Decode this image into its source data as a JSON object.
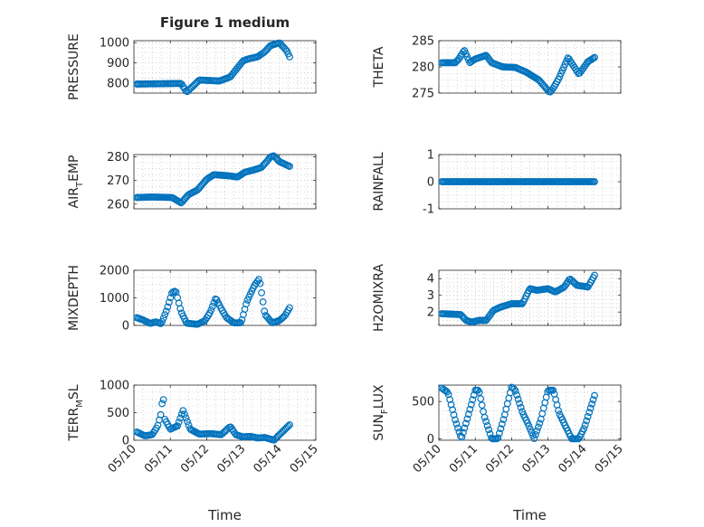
{
  "window": {
    "title": "Figure 1 medium"
  },
  "chart_data": [
    {
      "type": "scatter",
      "panel": 1,
      "title": "Figure 1 medium",
      "ylabel": "PRESSURE",
      "ylabel_sub": "",
      "ylabel_post": "",
      "ylabel_sup": "",
      "xlabel": "",
      "ylim": [
        750,
        1010
      ],
      "yticks": [
        800,
        900,
        1000
      ],
      "show_xticklabels": false,
      "x_start": "05/10",
      "xlim_days": [
        0,
        5
      ],
      "xticks": [
        {
          "day": 0,
          "label": "05/10"
        },
        {
          "day": 1,
          "label": "05/11"
        },
        {
          "day": 2,
          "label": "05/12"
        },
        {
          "day": 3,
          "label": "05/13"
        },
        {
          "day": 4,
          "label": "05/14"
        },
        {
          "day": 5,
          "label": "05/15"
        }
      ],
      "series": [
        {
          "color": "#0072bd",
          "t": [
            0.08,
            1.3,
            1.45,
            1.8,
            2.35,
            2.65,
            3.0,
            3.15,
            3.4,
            3.6,
            3.75,
            4.0,
            4.2,
            4.28
          ],
          "y": [
            795,
            798,
            755,
            815,
            810,
            830,
            910,
            920,
            930,
            955,
            985,
            1000,
            960,
            930
          ],
          "n": 110
        }
      ],
      "grid": true,
      "marker": "circle"
    },
    {
      "type": "scatter",
      "panel": 2,
      "title": "",
      "ylabel": "THETA",
      "ylabel_sub": "",
      "ylabel_post": "",
      "ylabel_sup": "",
      "xlabel": "",
      "ylim": [
        275,
        285
      ],
      "yticks": [
        275,
        280,
        285
      ],
      "show_xticklabels": false,
      "x_start": "05/10",
      "xlim_days": [
        0,
        5
      ],
      "xticks": [
        {
          "day": 0,
          "label": "05/10"
        },
        {
          "day": 1,
          "label": "05/11"
        },
        {
          "day": 2,
          "label": "05/12"
        },
        {
          "day": 3,
          "label": "05/13"
        },
        {
          "day": 4,
          "label": "05/14"
        },
        {
          "day": 5,
          "label": "05/15"
        }
      ],
      "series": [
        {
          "color": "#0072bd",
          "t": [
            0.08,
            0.45,
            0.55,
            0.7,
            0.85,
            1.0,
            1.3,
            1.45,
            1.75,
            2.1,
            2.4,
            2.75,
            3.05,
            3.15,
            3.3,
            3.55,
            3.85,
            4.1,
            4.28
          ],
          "y": [
            280.8,
            280.8,
            281.5,
            283.2,
            280.8,
            281.5,
            282.2,
            280.8,
            280.0,
            279.9,
            279.0,
            277.5,
            275.1,
            276.0,
            277.8,
            281.8,
            278.6,
            281.0,
            281.8
          ],
          "n": 115
        }
      ],
      "grid": true,
      "marker": "circle"
    },
    {
      "type": "scatter",
      "panel": 3,
      "title": "",
      "ylabel": "AIR",
      "ylabel_sub": "T",
      "ylabel_post": "EMP",
      "ylabel_sup": "",
      "xlabel": "",
      "ylim": [
        258,
        281
      ],
      "yticks": [
        260,
        270,
        280
      ],
      "show_xticklabels": false,
      "x_start": "05/10",
      "xlim_days": [
        0,
        5
      ],
      "xticks": [
        {
          "day": 0,
          "label": "05/10"
        },
        {
          "day": 1,
          "label": "05/11"
        },
        {
          "day": 2,
          "label": "05/12"
        },
        {
          "day": 3,
          "label": "05/13"
        },
        {
          "day": 4,
          "label": "05/14"
        },
        {
          "day": 5,
          "label": "05/15"
        }
      ],
      "series": [
        {
          "color": "#0072bd",
          "t": [
            0.08,
            0.5,
            1.05,
            1.3,
            1.5,
            1.75,
            2.0,
            2.2,
            2.6,
            2.85,
            3.05,
            3.3,
            3.5,
            3.65,
            3.75,
            3.85,
            4.0,
            4.28
          ],
          "y": [
            262.8,
            263.0,
            262.8,
            260.5,
            264.0,
            266.0,
            270.5,
            272.5,
            272.0,
            271.5,
            273.5,
            274.5,
            275.5,
            278.0,
            280.0,
            280.5,
            278.0,
            276.0
          ],
          "n": 115
        }
      ],
      "grid": true,
      "marker": "circle"
    },
    {
      "type": "scatter",
      "panel": 4,
      "title": "",
      "ylabel": "RAINFALL",
      "ylabel_sub": "",
      "ylabel_post": "",
      "ylabel_sup": "",
      "xlabel": "",
      "ylim": [
        -1,
        1
      ],
      "yticks": [
        -1,
        0,
        1
      ],
      "show_xticklabels": false,
      "x_start": "05/10",
      "xlim_days": [
        0,
        5
      ],
      "xticks": [
        {
          "day": 0,
          "label": "05/10"
        },
        {
          "day": 1,
          "label": "05/11"
        },
        {
          "day": 2,
          "label": "05/12"
        },
        {
          "day": 3,
          "label": "05/13"
        },
        {
          "day": 4,
          "label": "05/14"
        },
        {
          "day": 5,
          "label": "05/15"
        }
      ],
      "series": [
        {
          "color": "#0072bd",
          "t": [
            0.08,
            4.28
          ],
          "y": [
            0,
            0
          ],
          "n": 115
        }
      ],
      "grid": true,
      "marker": "circle"
    },
    {
      "type": "scatter",
      "panel": 5,
      "title": "",
      "ylabel": "MIXDEPTH",
      "ylabel_sub": "",
      "ylabel_post": "",
      "ylabel_sup": "",
      "xlabel": "",
      "ylim": [
        0,
        2000
      ],
      "yticks": [
        0,
        1000,
        2000
      ],
      "show_xticklabels": false,
      "x_start": "05/10",
      "xlim_days": [
        0,
        5
      ],
      "xticks": [
        {
          "day": 0,
          "label": "05/10"
        },
        {
          "day": 1,
          "label": "05/11"
        },
        {
          "day": 2,
          "label": "05/12"
        },
        {
          "day": 3,
          "label": "05/13"
        },
        {
          "day": 4,
          "label": "05/14"
        },
        {
          "day": 5,
          "label": "05/15"
        }
      ],
      "series": [
        {
          "color": "#0072bd",
          "t": [
            0.08,
            0.25,
            0.45,
            0.6,
            0.75,
            0.9,
            1.05,
            1.15,
            1.3,
            1.45,
            1.75,
            1.95,
            2.1,
            2.25,
            2.4,
            2.55,
            2.75,
            2.95,
            3.1,
            3.3,
            3.45,
            3.6,
            3.8,
            4.0,
            4.15,
            4.28
          ],
          "y": [
            280,
            200,
            70,
            130,
            60,
            550,
            1200,
            1250,
            480,
            80,
            40,
            170,
            480,
            1000,
            600,
            280,
            90,
            100,
            850,
            1420,
            1700,
            400,
            90,
            180,
            350,
            640
          ],
          "n": 110
        }
      ],
      "grid": true,
      "marker": "circle"
    },
    {
      "type": "scatter",
      "panel": 6,
      "title": "",
      "ylabel": "H2OMIXRA",
      "ylabel_sub": "",
      "ylabel_post": "",
      "ylabel_sup": "",
      "xlabel": "",
      "ylim": [
        1.2,
        4.5
      ],
      "yticks": [
        2,
        3,
        4
      ],
      "show_xticklabels": false,
      "x_start": "05/10",
      "xlim_days": [
        0,
        5
      ],
      "xticks": [
        {
          "day": 0,
          "label": "05/10"
        },
        {
          "day": 1,
          "label": "05/11"
        },
        {
          "day": 2,
          "label": "05/12"
        },
        {
          "day": 3,
          "label": "05/13"
        },
        {
          "day": 4,
          "label": "05/14"
        },
        {
          "day": 5,
          "label": "05/15"
        }
      ],
      "series": [
        {
          "color": "#0072bd",
          "t": [
            0.08,
            0.6,
            0.75,
            0.9,
            1.1,
            1.3,
            1.5,
            1.7,
            2.0,
            2.3,
            2.5,
            2.7,
            3.0,
            3.2,
            3.45,
            3.6,
            3.8,
            4.1,
            4.28
          ],
          "y": [
            1.9,
            1.85,
            1.5,
            1.4,
            1.5,
            1.5,
            2.1,
            2.3,
            2.5,
            2.5,
            3.4,
            3.3,
            3.4,
            3.2,
            3.5,
            4.0,
            3.6,
            3.5,
            4.2
          ],
          "n": 115
        }
      ],
      "grid": true,
      "marker": "circle"
    },
    {
      "type": "scatter",
      "panel": 7,
      "title": "",
      "ylabel": "TERR",
      "ylabel_sub": "M",
      "ylabel_post": "SL",
      "ylabel_sup": "",
      "xlabel": "Time",
      "ylim": [
        0,
        1000
      ],
      "yticks": [
        0,
        500,
        1000
      ],
      "show_xticklabels": true,
      "x_start": "05/10",
      "xlim_days": [
        0,
        5
      ],
      "xticks": [
        {
          "day": 0,
          "label": "05/10"
        },
        {
          "day": 1,
          "label": "05/11"
        },
        {
          "day": 2,
          "label": "05/12"
        },
        {
          "day": 3,
          "label": "05/13"
        },
        {
          "day": 4,
          "label": "05/14"
        },
        {
          "day": 5,
          "label": "05/15"
        }
      ],
      "series": [
        {
          "color": "#0072bd",
          "t": [
            0.08,
            0.3,
            0.5,
            0.65,
            0.75,
            0.8,
            0.85,
            1.0,
            1.2,
            1.35,
            1.55,
            1.8,
            2.1,
            2.4,
            2.65,
            2.8,
            3.0,
            3.2,
            3.4,
            3.6,
            3.85,
            4.0,
            4.28
          ],
          "y": [
            150,
            80,
            100,
            250,
            500,
            850,
            380,
            200,
            260,
            540,
            200,
            110,
            120,
            100,
            250,
            100,
            60,
            70,
            40,
            50,
            0,
            100,
            280
          ],
          "n": 110
        }
      ],
      "grid": true,
      "marker": "circle"
    },
    {
      "type": "scatter",
      "panel": 8,
      "title": "",
      "ylabel": "SUN",
      "ylabel_sub": "F",
      "ylabel_post": "LUX",
      "ylabel_sup": "",
      "xlabel": "Time",
      "ylim": [
        -20,
        720
      ],
      "yticks": [
        0,
        500
      ],
      "show_xticklabels": true,
      "x_start": "05/10",
      "xlim_days": [
        0,
        5
      ],
      "xticks": [
        {
          "day": 0,
          "label": "05/10"
        },
        {
          "day": 1,
          "label": "05/11"
        },
        {
          "day": 2,
          "label": "05/12"
        },
        {
          "day": 3,
          "label": "05/13"
        },
        {
          "day": 4,
          "label": "05/14"
        },
        {
          "day": 5,
          "label": "05/15"
        }
      ],
      "series": [
        {
          "color": "#0072bd",
          "t": [
            0.08,
            0.25,
            0.45,
            0.62,
            0.8,
            1.0,
            1.1,
            1.25,
            1.45,
            1.62,
            1.8,
            2.0,
            2.1,
            2.3,
            2.45,
            2.62,
            2.8,
            3.0,
            3.15,
            3.3,
            3.45,
            3.65,
            3.85,
            4.0,
            4.28
          ],
          "y": [
            680,
            620,
            250,
            0,
            300,
            650,
            650,
            300,
            0,
            0,
            300,
            700,
            650,
            350,
            200,
            0,
            250,
            650,
            650,
            350,
            200,
            0,
            0,
            150,
            580
          ],
          "n": 115
        }
      ],
      "grid": true,
      "marker": "circle"
    }
  ]
}
